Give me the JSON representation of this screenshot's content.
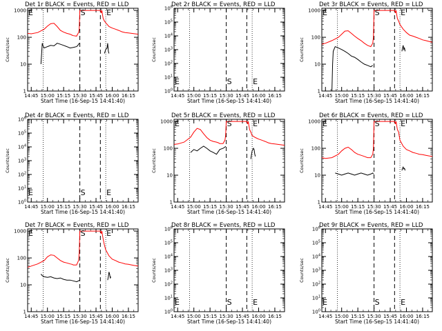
{
  "colors": {
    "events": "#000000",
    "lld": "#ff0000",
    "axes": "#000000"
  },
  "chart_data": [
    {
      "type": "line",
      "title": "Det 1r BLACK = Events, RED = LLD",
      "xlabel": "Start Time (16-Sep-15 14:41:40)",
      "ylabel": "Counts/sec",
      "y_ticks": [
        "1",
        "10",
        "100",
        "1000"
      ],
      "yscale": "log",
      "ylim": [
        1,
        1200
      ],
      "x_ticks": [
        "14:45",
        "15:00",
        "15:15",
        "15:30",
        "15:45",
        "16:00",
        "16:15"
      ],
      "xlim_hours": [
        14.694,
        16.4
      ],
      "markers": [
        {
          "label": "S",
          "t": 15.5
        },
        {
          "label": "E",
          "t": 15.9
        }
      ],
      "series": [
        {
          "color": "red",
          "x": [
            14.694,
            14.75,
            14.85,
            14.95,
            15.0,
            15.05,
            15.1,
            15.15,
            15.2,
            15.25,
            15.3,
            15.35,
            15.38,
            15.4,
            15.45,
            15.48,
            15.49,
            15.5,
            15.505,
            15.51,
            15.52,
            15.53,
            15.54,
            15.55,
            15.56,
            15.57,
            15.58,
            15.8,
            15.82,
            15.83,
            15.84,
            15.85,
            15.86,
            15.88,
            15.9,
            15.95,
            16.0,
            16.05,
            16.1,
            16.15,
            16.2,
            16.25,
            16.3,
            16.35,
            16.4
          ],
          "y": [
            140,
            135,
            150,
            200,
            260,
            320,
            330,
            250,
            180,
            155,
            140,
            130,
            120,
            115,
            110,
            150,
            200,
            1000,
            1000,
            1000,
            1000,
            1000,
            1000,
            1000,
            1000,
            1000,
            1000,
            1000,
            1000,
            800,
            1000,
            700,
            500,
            400,
            350,
            250,
            220,
            200,
            180,
            160,
            150,
            145,
            140,
            135,
            130
          ]
        },
        {
          "color": "black",
          "x": [
            14.9,
            14.92,
            14.93,
            14.95,
            15.0,
            15.05,
            15.1,
            15.15,
            15.2,
            15.25,
            15.3,
            15.35,
            15.4,
            15.45,
            15.47,
            15.48,
            15.49
          ],
          "y": [
            10,
            60,
            50,
            40,
            45,
            50,
            48,
            60,
            55,
            50,
            45,
            40,
            42,
            45,
            50,
            55,
            60
          ]
        },
        {
          "color": "black",
          "x": [
            15.88,
            15.89,
            15.9,
            15.92,
            15.93,
            15.94,
            15.95
          ],
          "y": [
            25,
            30,
            35,
            40,
            60,
            30,
            25
          ]
        }
      ]
    },
    {
      "type": "line",
      "title": "Det 2r BLACK = Events, RED = LLD",
      "xlabel": "Start Time (16-Sep-15 14:41:40)",
      "ylabel": "Counts/sec",
      "y_ticks": [
        "10^0",
        "10^1",
        "10^2",
        "10^3",
        "10^4",
        "10^5",
        "10^6"
      ],
      "yscale": "log",
      "ylim": [
        1,
        1000000
      ],
      "x_ticks": [
        "14:45",
        "15:00",
        "15:15",
        "15:30",
        "15:45",
        "16:00",
        "16:15"
      ],
      "xlim_hours": [
        14.694,
        16.4
      ],
      "markers": [
        {
          "label": "S",
          "t": 15.5
        },
        {
          "label": "E",
          "t": 15.9
        }
      ],
      "series": []
    },
    {
      "type": "line",
      "title": "Det 3r BLACK = Events, RED = LLD",
      "xlabel": "Start Time (16-Sep-15 14:41:40)",
      "ylabel": "Counts/sec",
      "y_ticks": [
        "1",
        "10",
        "100",
        "1000"
      ],
      "yscale": "log",
      "ylim": [
        1,
        1200
      ],
      "x_ticks": [
        "14:45",
        "15:00",
        "15:15",
        "15:30",
        "15:45",
        "16:00",
        "16:15"
      ],
      "xlim_hours": [
        14.694,
        16.4
      ],
      "markers": [
        {
          "label": "S",
          "t": 15.5
        },
        {
          "label": "E",
          "t": 15.9
        }
      ],
      "series": [
        {
          "color": "red",
          "x": [
            14.694,
            14.75,
            14.85,
            14.95,
            15.0,
            15.05,
            15.1,
            15.15,
            15.2,
            15.25,
            15.3,
            15.35,
            15.4,
            15.45,
            15.48,
            15.49,
            15.5,
            15.51,
            15.52,
            15.53,
            15.54,
            15.55,
            15.56,
            15.57,
            15.58,
            15.8,
            15.82,
            15.83,
            15.84,
            15.85,
            15.86,
            15.88,
            15.9,
            15.95,
            16.0,
            16.05,
            16.1,
            16.15,
            16.2,
            16.25,
            16.3,
            16.35,
            16.4
          ],
          "y": [
            55,
            60,
            75,
            100,
            130,
            170,
            175,
            140,
            110,
            90,
            75,
            60,
            50,
            45,
            60,
            100,
            1000,
            1000,
            1000,
            1000,
            1000,
            1000,
            1000,
            1000,
            1000,
            1000,
            1000,
            800,
            1000,
            700,
            500,
            400,
            300,
            200,
            150,
            120,
            110,
            100,
            90,
            80,
            75,
            70,
            65
          ]
        },
        {
          "color": "black",
          "x": [
            14.85,
            14.86,
            14.87,
            14.9,
            14.95,
            15.0,
            15.05,
            15.1,
            15.15,
            15.2,
            15.25,
            15.3,
            15.35,
            15.4,
            15.45,
            15.48
          ],
          "y": [
            1,
            10,
            30,
            45,
            40,
            35,
            30,
            25,
            20,
            18,
            15,
            12,
            10,
            9,
            8,
            9
          ]
        },
        {
          "color": "black",
          "x": [
            15.93,
            15.94,
            15.95,
            15.96,
            15.97,
            15.98
          ],
          "y": [
            30,
            40,
            50,
            35,
            40,
            30
          ]
        }
      ]
    },
    {
      "type": "line",
      "title": "Det 4r BLACK = Events, RED = LLD",
      "xlabel": "Start Time (16-Sep-15 14:41:40)",
      "ylabel": "Counts/sec",
      "y_ticks": [
        "10^0",
        "10^1",
        "10^2",
        "10^3",
        "10^4",
        "10^5",
        "10^6"
      ],
      "yscale": "log",
      "ylim": [
        1,
        1000000
      ],
      "x_ticks": [
        "14:45",
        "15:00",
        "15:15",
        "15:30",
        "15:45",
        "16:00",
        "16:15"
      ],
      "xlim_hours": [
        14.694,
        16.4
      ],
      "markers": [
        {
          "label": "S",
          "t": 15.5
        },
        {
          "label": "E",
          "t": 15.9
        }
      ],
      "series": []
    },
    {
      "type": "line",
      "title": "Det 5r BLACK = Events, RED = LLD",
      "xlabel": "Start Time (16-Sep-15 14:41:40)",
      "ylabel": "Counts/sec",
      "y_ticks": [
        "1",
        "10",
        "100",
        "1000"
      ],
      "yscale": "log",
      "ylim": [
        1,
        1200
      ],
      "x_ticks": [
        "14:45",
        "15:00",
        "15:15",
        "15:30",
        "15:45",
        "16:00",
        "16:15"
      ],
      "xlim_hours": [
        14.694,
        16.4
      ],
      "markers": [
        {
          "label": "S",
          "t": 15.5
        },
        {
          "label": "E",
          "t": 15.9
        }
      ],
      "series": [
        {
          "color": "red",
          "x": [
            14.694,
            14.75,
            14.85,
            14.95,
            15.0,
            15.05,
            15.1,
            15.15,
            15.2,
            15.25,
            15.3,
            15.35,
            15.38,
            15.4,
            15.45,
            15.48,
            15.49,
            15.5,
            15.51,
            15.52,
            15.53,
            15.54,
            15.55,
            15.56,
            15.57,
            15.58,
            15.8,
            15.82,
            15.83,
            15.84,
            15.85,
            15.86,
            15.88,
            15.9,
            15.95,
            16.0,
            16.05,
            16.1,
            16.15,
            16.2,
            16.25,
            16.3,
            16.35,
            16.4
          ],
          "y": [
            140,
            145,
            170,
            260,
            400,
            550,
            500,
            350,
            250,
            200,
            180,
            170,
            160,
            150,
            150,
            200,
            300,
            1000,
            1000,
            1000,
            1000,
            1000,
            1000,
            1000,
            1000,
            1000,
            1000,
            1000,
            800,
            1000,
            700,
            500,
            400,
            300,
            250,
            220,
            200,
            180,
            160,
            150,
            145,
            140,
            135,
            130
          ]
        },
        {
          "color": "black",
          "x": [
            14.95,
            15.0,
            15.05,
            15.1,
            15.15,
            15.2,
            15.25,
            15.3,
            15.35,
            15.4,
            15.45,
            15.48,
            15.49
          ],
          "y": [
            70,
            90,
            80,
            100,
            120,
            100,
            80,
            70,
            60,
            90,
            100,
            110,
            120
          ]
        },
        {
          "color": "black",
          "x": [
            15.88,
            15.89,
            15.9,
            15.92,
            15.93,
            15.94,
            15.95
          ],
          "y": [
            40,
            60,
            80,
            100,
            90,
            60,
            50
          ]
        }
      ]
    },
    {
      "type": "line",
      "title": "Det 6r BLACK = Events, RED = LLD",
      "xlabel": "Start Time (16-Sep-15 14:41:40)",
      "ylabel": "Counts/sec",
      "y_ticks": [
        "1",
        "10",
        "100",
        "1000"
      ],
      "yscale": "log",
      "ylim": [
        1,
        1200
      ],
      "x_ticks": [
        "14:45",
        "15:00",
        "15:15",
        "15:30",
        "15:45",
        "16:00",
        "16:15"
      ],
      "xlim_hours": [
        14.694,
        16.4
      ],
      "markers": [
        {
          "label": "S",
          "t": 15.5
        },
        {
          "label": "E",
          "t": 15.9
        }
      ],
      "series": [
        {
          "color": "red",
          "x": [
            14.694,
            14.75,
            14.85,
            14.95,
            15.0,
            15.05,
            15.1,
            15.15,
            15.2,
            15.25,
            15.3,
            15.35,
            15.4,
            15.45,
            15.48,
            15.49,
            15.5,
            15.51,
            15.52,
            15.53,
            15.54,
            15.55,
            15.56,
            15.57,
            15.58,
            15.8,
            15.82,
            15.83,
            15.84,
            15.85,
            15.86,
            15.88,
            15.9,
            15.95,
            16.0,
            16.05,
            16.1,
            16.15,
            16.2,
            16.25,
            16.3,
            16.35,
            16.4
          ],
          "y": [
            45,
            42,
            45,
            60,
            80,
            100,
            110,
            90,
            70,
            60,
            55,
            50,
            45,
            45,
            60,
            100,
            1000,
            1000,
            1000,
            1000,
            1000,
            1000,
            1000,
            1000,
            1000,
            1000,
            1000,
            800,
            1000,
            700,
            500,
            400,
            200,
            120,
            90,
            80,
            70,
            65,
            60,
            58,
            55,
            52,
            50
          ]
        },
        {
          "color": "black",
          "x": [
            14.9,
            14.95,
            15.0,
            15.05,
            15.1,
            15.15,
            15.2,
            15.25,
            15.3,
            15.35,
            15.4,
            15.45,
            15.48,
            15.49
          ],
          "y": [
            12,
            11,
            10,
            11,
            12,
            11,
            10,
            11,
            12,
            11,
            10,
            11,
            12,
            11
          ]
        },
        {
          "color": "black",
          "x": [
            15.93,
            15.94,
            15.95,
            15.96,
            15.97,
            15.98
          ],
          "y": [
            15,
            18,
            20,
            17,
            18,
            15
          ]
        }
      ]
    },
    {
      "type": "line",
      "title": "Det 7r BLACK = Events, RED = LLD",
      "xlabel": "Start Time (16-Sep-15 14:41:40)",
      "ylabel": "Counts/sec",
      "y_ticks": [
        "1",
        "10",
        "100",
        "1000"
      ],
      "yscale": "log",
      "ylim": [
        1,
        1200
      ],
      "x_ticks": [
        "14:45",
        "15:00",
        "15:15",
        "15:30",
        "15:45",
        "16:00",
        "16:15"
      ],
      "xlim_hours": [
        14.694,
        16.4
      ],
      "markers": [
        {
          "label": "S",
          "t": 15.5
        },
        {
          "label": "E",
          "t": 15.9
        }
      ],
      "series": [
        {
          "color": "red",
          "x": [
            14.694,
            14.75,
            14.85,
            14.95,
            15.0,
            15.05,
            15.1,
            15.15,
            15.2,
            15.25,
            15.3,
            15.35,
            15.38,
            15.4,
            15.45,
            15.48,
            15.49,
            15.5,
            15.51,
            15.52,
            15.53,
            15.54,
            15.55,
            15.56,
            15.57,
            15.58,
            15.8,
            15.82,
            15.83,
            15.84,
            15.85,
            15.86,
            15.88,
            15.9,
            15.95,
            16.0,
            16.05,
            16.1,
            16.15,
            16.2,
            16.25,
            16.3,
            16.35,
            16.4
          ],
          "y": [
            45,
            50,
            60,
            80,
            110,
            130,
            125,
            100,
            80,
            70,
            65,
            60,
            58,
            55,
            55,
            80,
            150,
            1000,
            1000,
            1000,
            1000,
            1000,
            1000,
            1000,
            1000,
            1000,
            1000,
            1000,
            800,
            1000,
            700,
            500,
            300,
            200,
            120,
            90,
            80,
            70,
            65,
            60,
            58,
            55,
            52,
            50
          ]
        },
        {
          "color": "black",
          "x": [
            14.9,
            14.92,
            14.95,
            15.0,
            15.05,
            15.1,
            15.15,
            15.2,
            15.25,
            15.3,
            15.35,
            15.4,
            15.45,
            15.48,
            15.49
          ],
          "y": [
            25,
            22,
            20,
            19,
            20,
            18,
            17,
            18,
            16,
            15,
            15,
            14,
            13,
            14,
            15
          ]
        },
        {
          "color": "black",
          "x": [
            15.93,
            15.94,
            15.95,
            15.96,
            15.97,
            15.98
          ],
          "y": [
            15,
            20,
            30,
            25,
            18,
            20
          ]
        }
      ]
    },
    {
      "type": "line",
      "title": "Det 8r BLACK = Events, RED = LLD",
      "xlabel": "Start Time (16-Sep-15 14:41:40)",
      "ylabel": "Counts/sec",
      "y_ticks": [
        "10^0",
        "10^1",
        "10^2",
        "10^3",
        "10^4",
        "10^5",
        "10^6"
      ],
      "yscale": "log",
      "ylim": [
        1,
        1000000
      ],
      "x_ticks": [
        "14:45",
        "15:00",
        "15:15",
        "15:30",
        "15:45",
        "16:00",
        "16:15"
      ],
      "xlim_hours": [
        14.694,
        16.4
      ],
      "markers": [
        {
          "label": "S",
          "t": 15.5
        },
        {
          "label": "E",
          "t": 15.9
        }
      ],
      "series": []
    },
    {
      "type": "line",
      "title": "Det 9r BLACK = Events, RED = LLD",
      "xlabel": "Start Time (16-Sep-15 14:41:40)",
      "ylabel": "Counts/sec",
      "y_ticks": [
        "10^0",
        "10^1",
        "10^2",
        "10^3",
        "10^4",
        "10^5",
        "10^6"
      ],
      "yscale": "log",
      "ylim": [
        1,
        1000000
      ],
      "x_ticks": [
        "14:45",
        "15:00",
        "15:15",
        "15:30",
        "15:45",
        "16:00",
        "16:15"
      ],
      "xlim_hours": [
        14.694,
        16.4
      ],
      "markers": [
        {
          "label": "S",
          "t": 15.5
        },
        {
          "label": "E",
          "t": 15.9
        }
      ],
      "series": []
    }
  ]
}
